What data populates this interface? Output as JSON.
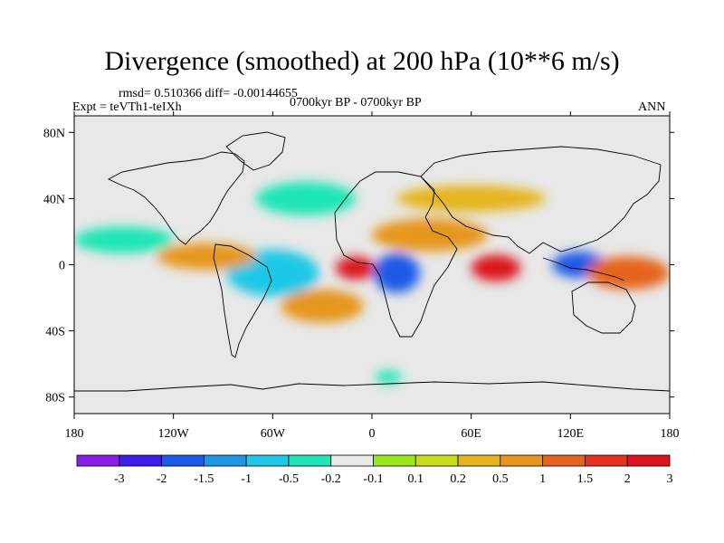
{
  "chart_data": {
    "type": "heatmap",
    "title": "Divergence (smoothed) at 200 hPa (10**6 m/s)",
    "stats": "rmsd= 0.510366 diff= -0.00144655",
    "experiment": "Expt = teVTh1-teIXh",
    "period": "0700kyr BP - 0700kyr BP",
    "season": "ANN",
    "x_ticks": [
      "180",
      "120W",
      "60W",
      "0",
      "60E",
      "120E",
      "180"
    ],
    "x_values": [
      -180,
      -120,
      -60,
      0,
      60,
      120,
      180
    ],
    "y_ticks": [
      "80N",
      "40N",
      "0",
      "40S",
      "80S"
    ],
    "y_values": [
      80,
      40,
      0,
      -40,
      -80
    ],
    "xlim": [
      -180,
      180
    ],
    "ylim": [
      -90,
      90
    ],
    "colorbar": {
      "labels": [
        "-3",
        "-2",
        "-1.5",
        "-1",
        "-0.5",
        "-0.2",
        "-0.1",
        "0.1",
        "0.2",
        "0.5",
        "1",
        "1.5",
        "2",
        "3"
      ],
      "colors": [
        "#8a1ee6",
        "#3c1ee6",
        "#1e5ae6",
        "#1e96e6",
        "#1ec8e6",
        "#1ee6b4",
        "#e8e8e8",
        "#9be61e",
        "#c8dc1e",
        "#e6b41e",
        "#e6961e",
        "#e6641e",
        "#e6321e",
        "#dc141e"
      ]
    },
    "features": [
      {
        "lon": -10,
        "lat": -2,
        "rx": 12,
        "ry": 7,
        "value": 2.5
      },
      {
        "lon": 75,
        "lat": -2,
        "rx": 15,
        "ry": 8,
        "value": 2.8
      },
      {
        "lon": 15,
        "lat": -5,
        "rx": 14,
        "ry": 12,
        "value": -2
      },
      {
        "lon": 125,
        "lat": 0,
        "rx": 16,
        "ry": 8,
        "value": -1.8
      },
      {
        "lon": -60,
        "lat": -5,
        "rx": 28,
        "ry": 14,
        "value": -1
      },
      {
        "lon": 35,
        "lat": 18,
        "rx": 35,
        "ry": 10,
        "value": 0.8
      },
      {
        "lon": 155,
        "lat": -5,
        "rx": 25,
        "ry": 10,
        "value": 1.2
      },
      {
        "lon": -150,
        "lat": 15,
        "rx": 30,
        "ry": 8,
        "value": -0.3
      },
      {
        "lon": -100,
        "lat": 5,
        "rx": 30,
        "ry": 8,
        "value": 0.6
      },
      {
        "lon": -30,
        "lat": -25,
        "rx": 25,
        "ry": 10,
        "value": 0.6
      },
      {
        "lon": 60,
        "lat": 40,
        "rx": 45,
        "ry": 8,
        "value": 0.3
      },
      {
        "lon": -40,
        "lat": 40,
        "rx": 30,
        "ry": 10,
        "value": -0.4
      },
      {
        "lon": 10,
        "lat": -68,
        "rx": 8,
        "ry": 4,
        "value": -0.4
      }
    ]
  }
}
